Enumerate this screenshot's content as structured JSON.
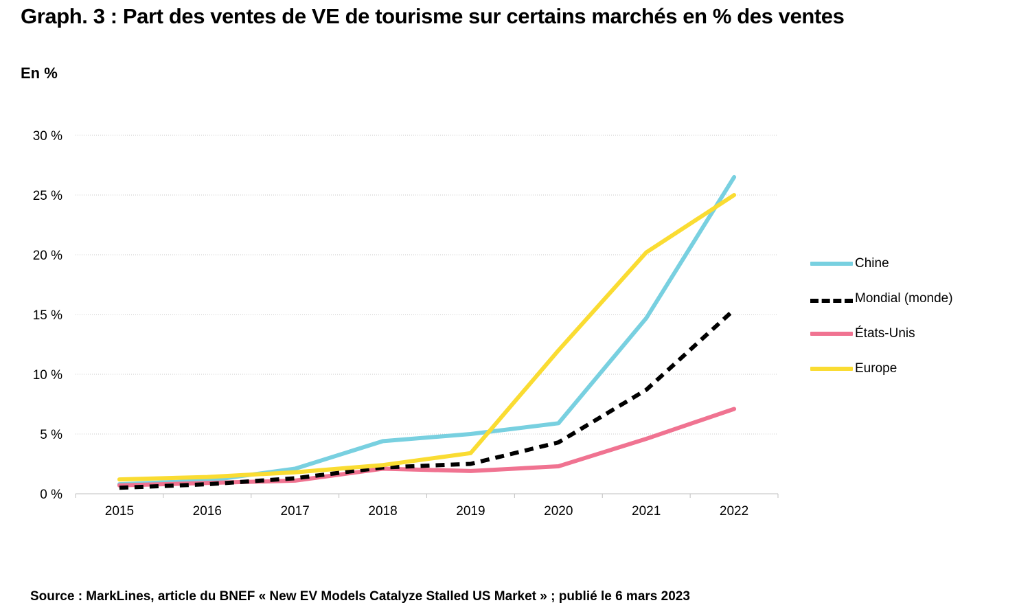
{
  "title": "Graph. 3 : Part des ventes de VE de tourisme sur certains marchés en % des ventes",
  "unit_label": "En %",
  "source": "Source : MarkLines, article du BNEF « New EV Models Catalyze Stalled US Market » ; publié le 6 mars 2023",
  "chart_data": {
    "type": "line",
    "title": "Graph. 3 : Part des ventes de VE de tourisme sur certains marchés en % des ventes",
    "xlabel": "",
    "ylabel": "En %",
    "categories": [
      "2015",
      "2016",
      "2017",
      "2018",
      "2019",
      "2020",
      "2021",
      "2022"
    ],
    "ylim": [
      0,
      30
    ],
    "yticks": [
      0,
      5,
      10,
      15,
      20,
      25,
      30
    ],
    "ytick_labels": [
      "0 %",
      "5 %",
      "10 %",
      "15 %",
      "20 %",
      "25 %",
      "30 %"
    ],
    "grid": "horizontal dotted",
    "legend_position": "right",
    "series": [
      {
        "name": "Chine",
        "color": "#78D0E0",
        "style": "solid",
        "values": [
          0.8,
          1.1,
          2.1,
          4.4,
          5.0,
          5.9,
          14.7,
          26.5
        ]
      },
      {
        "name": "Mondial (monde)",
        "color": "#000000",
        "style": "dashed",
        "values": [
          0.5,
          0.8,
          1.3,
          2.2,
          2.5,
          4.3,
          8.7,
          15.4
        ]
      },
      {
        "name": "États-Unis",
        "color": "#F07391",
        "style": "solid",
        "values": [
          0.7,
          0.9,
          1.1,
          2.1,
          1.9,
          2.3,
          4.6,
          7.1
        ]
      },
      {
        "name": "Europe",
        "color": "#FADC32",
        "style": "solid",
        "values": [
          1.2,
          1.4,
          1.8,
          2.4,
          3.4,
          12.0,
          20.2,
          25.0
        ]
      }
    ]
  }
}
